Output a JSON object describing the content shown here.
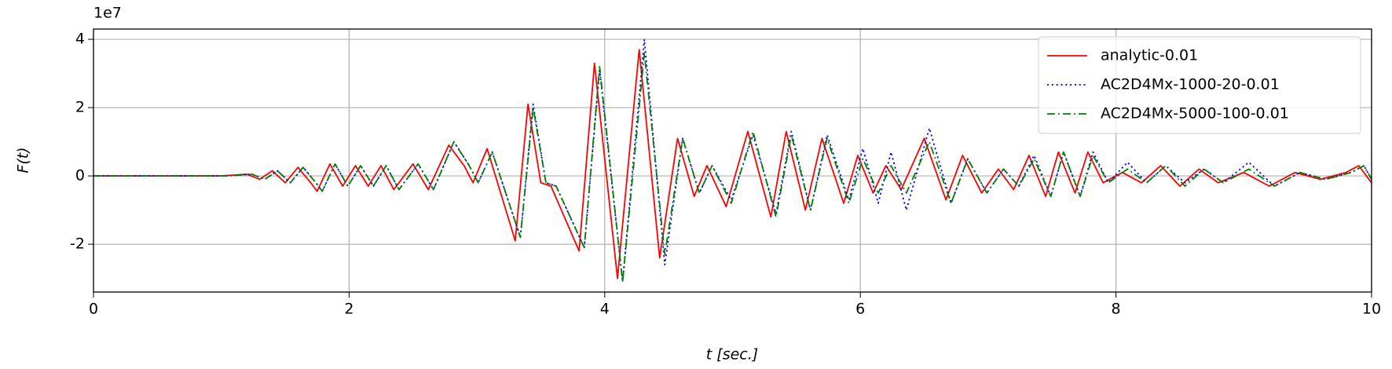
{
  "chart_data": {
    "type": "line",
    "xlabel": "t [sec.]",
    "ylabel": "F(t)",
    "offset_label": "1e7",
    "xlim": [
      0,
      10
    ],
    "xticks": [
      0,
      2,
      4,
      6,
      8,
      10
    ],
    "ylim": [
      -3.4,
      4.3
    ],
    "yticks": [
      -2,
      0,
      2,
      4
    ],
    "grid": true,
    "legend": "upper right",
    "series": [
      {
        "name": "analytic-0.01",
        "color": "#ff0000",
        "style": "solid",
        "x": [
          0,
          1.0,
          1.2,
          1.3,
          1.4,
          1.5,
          1.6,
          1.7,
          1.75,
          1.85,
          1.95,
          2.05,
          2.15,
          2.25,
          2.35,
          2.5,
          2.62,
          2.78,
          2.9,
          2.97,
          3.08,
          3.3,
          3.4,
          3.5,
          3.58,
          3.8,
          3.92,
          4.1,
          4.27,
          4.43,
          4.57,
          4.7,
          4.8,
          4.95,
          5.12,
          5.3,
          5.42,
          5.57,
          5.7,
          5.87,
          5.98,
          6.1,
          6.2,
          6.32,
          6.5,
          6.67,
          6.8,
          6.95,
          7.08,
          7.2,
          7.32,
          7.45,
          7.55,
          7.68,
          7.78,
          7.9,
          8.05,
          8.2,
          8.35,
          8.5,
          8.65,
          8.8,
          9.0,
          9.2,
          9.4,
          9.6,
          9.8,
          9.9,
          10
        ],
        "values": [
          0,
          0,
          0.05,
          -0.1,
          0.15,
          -0.2,
          0.25,
          -0.2,
          -0.45,
          0.35,
          -0.3,
          0.3,
          -0.3,
          0.3,
          -0.4,
          0.35,
          -0.4,
          0.9,
          0.3,
          -0.2,
          0.8,
          -1.9,
          2.1,
          -0.2,
          -0.3,
          -2.2,
          3.3,
          -3.0,
          3.7,
          -2.4,
          1.1,
          -0.6,
          0.3,
          -0.9,
          1.3,
          -1.2,
          1.3,
          -1.0,
          1.1,
          -0.8,
          0.6,
          -0.5,
          0.3,
          -0.4,
          1.1,
          -0.7,
          0.6,
          -0.5,
          0.2,
          -0.4,
          0.6,
          -0.6,
          0.7,
          -0.5,
          0.7,
          -0.2,
          0.1,
          -0.2,
          0.3,
          -0.3,
          0.2,
          -0.2,
          0.1,
          -0.3,
          0.1,
          -0.1,
          0.1,
          0.3,
          -0.2
        ]
      },
      {
        "name": "AC2D4Mx-1000-20-0.01",
        "color": "#0000ff",
        "style": "dotted",
        "x": [
          0,
          1.04,
          1.24,
          1.34,
          1.44,
          1.54,
          1.64,
          1.74,
          1.79,
          1.89,
          1.99,
          2.09,
          2.19,
          2.29,
          2.39,
          2.54,
          2.66,
          2.82,
          2.94,
          3.01,
          3.12,
          3.34,
          3.44,
          3.54,
          3.62,
          3.84,
          3.96,
          4.14,
          4.31,
          4.47,
          4.61,
          4.74,
          4.84,
          4.99,
          5.16,
          5.34,
          5.46,
          5.61,
          5.74,
          5.91,
          6.02,
          6.14,
          6.24,
          6.36,
          6.54,
          6.71,
          6.84,
          6.99,
          7.12,
          7.24,
          7.36,
          7.49,
          7.59,
          7.72,
          7.82,
          7.94,
          8.09,
          8.24,
          8.39,
          8.54,
          8.69,
          8.84,
          9.04,
          9.24,
          9.44,
          9.64,
          9.84,
          9.94,
          10
        ],
        "values": [
          0,
          0,
          0.05,
          -0.1,
          0.15,
          -0.2,
          0.25,
          -0.2,
          -0.45,
          0.35,
          -0.3,
          0.3,
          -0.3,
          0.3,
          -0.4,
          0.35,
          -0.4,
          1.0,
          0.3,
          -0.2,
          0.7,
          -1.8,
          2.1,
          -0.2,
          -0.3,
          -2.1,
          3.1,
          -3.1,
          4.0,
          -2.6,
          1.1,
          -0.5,
          0.3,
          -0.7,
          1.2,
          -1.1,
          1.3,
          -1.0,
          1.2,
          -0.7,
          0.8,
          -0.8,
          0.7,
          -1.0,
          1.4,
          -0.8,
          0.5,
          -0.5,
          0.2,
          -0.3,
          0.6,
          -0.6,
          0.7,
          -0.6,
          0.7,
          -0.2,
          0.4,
          -0.2,
          0.3,
          -0.2,
          0.2,
          -0.2,
          0.4,
          -0.3,
          0.1,
          -0.1,
          0.1,
          0.3,
          -0.1
        ]
      },
      {
        "name": "AC2D4Mx-5000-100-0.01",
        "color": "#008000",
        "style": "dashdot",
        "x": [
          0,
          1.04,
          1.24,
          1.34,
          1.44,
          1.54,
          1.64,
          1.74,
          1.79,
          1.89,
          1.99,
          2.09,
          2.19,
          2.29,
          2.39,
          2.54,
          2.66,
          2.82,
          2.94,
          3.01,
          3.12,
          3.34,
          3.44,
          3.54,
          3.62,
          3.84,
          3.96,
          4.14,
          4.31,
          4.47,
          4.61,
          4.74,
          4.84,
          4.99,
          5.16,
          5.34,
          5.46,
          5.61,
          5.74,
          5.91,
          6.02,
          6.14,
          6.24,
          6.36,
          6.54,
          6.71,
          6.84,
          6.99,
          7.12,
          7.24,
          7.36,
          7.49,
          7.59,
          7.72,
          7.82,
          7.94,
          8.09,
          8.24,
          8.39,
          8.54,
          8.69,
          8.84,
          9.04,
          9.24,
          9.44,
          9.64,
          9.84,
          9.94,
          10
        ],
        "values": [
          0,
          0,
          0.05,
          -0.1,
          0.15,
          -0.2,
          0.25,
          -0.2,
          -0.45,
          0.35,
          -0.3,
          0.3,
          -0.3,
          0.3,
          -0.4,
          0.35,
          -0.4,
          1.0,
          0.3,
          -0.2,
          0.7,
          -1.8,
          2.0,
          -0.2,
          -0.3,
          -2.1,
          3.2,
          -3.1,
          3.6,
          -2.3,
          1.1,
          -0.5,
          0.3,
          -0.8,
          1.3,
          -1.2,
          1.2,
          -1.0,
          1.1,
          -0.8,
          0.5,
          -0.5,
          0.3,
          -0.5,
          1.0,
          -0.8,
          0.5,
          -0.5,
          0.2,
          -0.3,
          0.5,
          -0.6,
          0.7,
          -0.6,
          0.6,
          -0.2,
          0.2,
          -0.2,
          0.3,
          -0.3,
          0.2,
          -0.2,
          0.2,
          -0.3,
          0.1,
          -0.1,
          0.1,
          0.3,
          -0.1
        ]
      }
    ]
  }
}
